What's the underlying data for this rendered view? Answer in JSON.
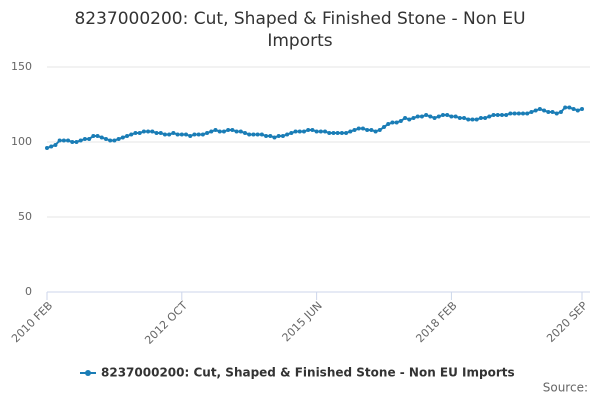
{
  "chart_data": {
    "type": "line",
    "title": "8237000200: Cut, Shaped & Finished Stone - Non EU Imports",
    "source_label": "Source:",
    "categories": [
      "2010 FEB",
      null,
      null,
      null,
      null,
      null,
      null,
      null,
      null,
      null,
      null,
      null,
      null,
      null,
      null,
      null,
      null,
      null,
      null,
      null,
      null,
      null,
      null,
      null,
      null,
      null,
      null,
      null,
      null,
      null,
      null,
      null,
      "2012 OCT",
      null,
      null,
      null,
      null,
      null,
      null,
      null,
      null,
      null,
      null,
      null,
      null,
      null,
      null,
      null,
      null,
      null,
      null,
      null,
      null,
      null,
      null,
      null,
      null,
      null,
      null,
      null,
      null,
      null,
      null,
      null,
      "2015 JUN",
      null,
      null,
      null,
      null,
      null,
      null,
      null,
      null,
      null,
      null,
      null,
      null,
      null,
      null,
      null,
      null,
      null,
      null,
      null,
      null,
      null,
      null,
      null,
      null,
      null,
      null,
      null,
      null,
      null,
      null,
      null,
      "2018 FEB",
      null,
      null,
      null,
      null,
      null,
      null,
      null,
      null,
      null,
      null,
      null,
      null,
      null,
      null,
      null,
      null,
      null,
      null,
      null,
      null,
      null,
      null,
      null,
      null,
      null,
      null,
      null,
      null,
      null,
      null,
      "2020 SEP"
    ],
    "series": [
      {
        "name": "8237000200: Cut, Shaped & Finished Stone - Non EU Imports",
        "color": "#1a7db6",
        "values": [
          96,
          97,
          98,
          101,
          101,
          101,
          100,
          100,
          101,
          102,
          102,
          104,
          104,
          103,
          102,
          101,
          101,
          102,
          103,
          104,
          105,
          106,
          106,
          107,
          107,
          107,
          106,
          106,
          105,
          105,
          106,
          105,
          105,
          105,
          104,
          105,
          105,
          105,
          106,
          107,
          108,
          107,
          107,
          108,
          108,
          107,
          107,
          106,
          105,
          105,
          105,
          105,
          104,
          104,
          103,
          104,
          104,
          105,
          106,
          107,
          107,
          107,
          108,
          108,
          107,
          107,
          107,
          106,
          106,
          106,
          106,
          106,
          107,
          108,
          109,
          109,
          108,
          108,
          107,
          108,
          110,
          112,
          113,
          113,
          114,
          116,
          115,
          116,
          117,
          117,
          118,
          117,
          116,
          117,
          118,
          118,
          117,
          117,
          116,
          116,
          115,
          115,
          115,
          116,
          116,
          117,
          118,
          118,
          118,
          118,
          119,
          119,
          119,
          119,
          119,
          120,
          121,
          122,
          121,
          120,
          120,
          119,
          120,
          123,
          123,
          122,
          121,
          122
        ]
      }
    ],
    "ylim": [
      0,
      150
    ],
    "yticks": [
      0,
      50,
      100,
      150
    ],
    "grid": true
  }
}
